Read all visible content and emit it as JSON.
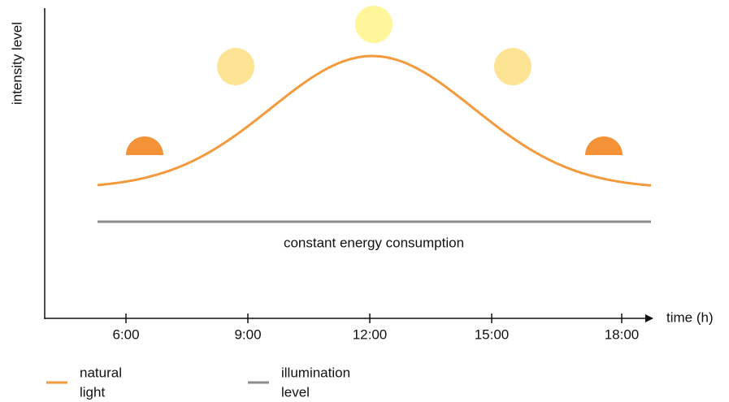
{
  "diagram": {
    "y_axis_label": "intensity level",
    "x_axis_label": "time (h)",
    "x_ticks": [
      "6:00",
      "9:00",
      "12:00",
      "15:00",
      "18:00"
    ],
    "annotation": "constant energy consumption",
    "legend": [
      {
        "lines": [
          "natural",
          "light"
        ],
        "color": "#f39a3c"
      },
      {
        "lines": [
          "illumination",
          "level"
        ],
        "color": "#8c8c8c"
      }
    ]
  }
}
